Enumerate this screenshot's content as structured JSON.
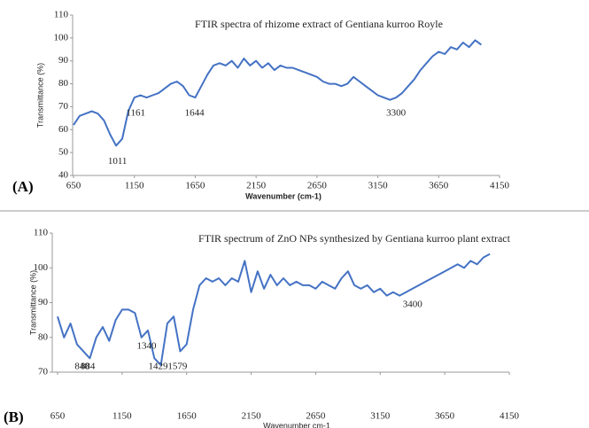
{
  "chart_data": [
    {
      "type": "line",
      "panel_label": "(A)",
      "title": "FTIR spectra of rhizome extract of Gentiana kurroo Royle",
      "xlabel": "Wavenumber (cm-1)",
      "ylabel": "Transmittance (%)",
      "x": [
        650,
        700,
        750,
        800,
        850,
        900,
        950,
        1000,
        1050,
        1100,
        1150,
        1200,
        1250,
        1300,
        1350,
        1400,
        1450,
        1500,
        1550,
        1600,
        1650,
        1700,
        1750,
        1800,
        1850,
        1900,
        1950,
        2000,
        2050,
        2100,
        2150,
        2200,
        2250,
        2300,
        2350,
        2400,
        2450,
        2500,
        2550,
        2600,
        2650,
        2700,
        2750,
        2800,
        2850,
        2900,
        2950,
        3000,
        3050,
        3100,
        3150,
        3200,
        3250,
        3300,
        3350,
        3400,
        3450,
        3500,
        3550,
        3600,
        3650,
        3700,
        3750,
        3800,
        3850,
        3900,
        3950,
        4000
      ],
      "values": [
        62,
        66,
        67,
        68,
        67,
        64,
        58,
        53,
        56,
        68,
        74,
        75,
        74,
        75,
        76,
        78,
        80,
        81,
        79,
        75,
        74,
        79,
        84,
        88,
        89,
        88,
        90,
        87,
        91,
        88,
        90,
        87,
        89,
        86,
        88,
        87,
        87,
        86,
        85,
        84,
        83,
        81,
        80,
        80,
        79,
        80,
        83,
        81,
        79,
        77,
        75,
        74,
        73,
        74,
        76,
        79,
        82,
        86,
        89,
        92,
        94,
        93,
        96,
        95,
        98,
        96,
        99,
        97
      ],
      "color": "#4472c4",
      "xlim": [
        650,
        4150
      ],
      "xticks": [
        650,
        1150,
        1650,
        2150,
        2650,
        3150,
        3650,
        4150
      ],
      "ylim": [
        40,
        110
      ],
      "yticks": [
        40,
        50,
        60,
        70,
        80,
        90,
        100,
        110
      ],
      "peak_labels": [
        1011,
        1161,
        1644,
        3300
      ]
    },
    {
      "type": "line",
      "panel_label": "(B)",
      "title": "FTIR spectrum of ZnO NPs synthesized by Gentiana kurroo plant extract",
      "xlabel": "Wavenumber cm-1",
      "ylabel": "Transmittance (%)",
      "x": [
        650,
        700,
        750,
        800,
        850,
        900,
        950,
        1000,
        1050,
        1100,
        1150,
        1200,
        1250,
        1300,
        1350,
        1400,
        1450,
        1500,
        1550,
        1600,
        1650,
        1700,
        1750,
        1800,
        1850,
        1900,
        1950,
        2000,
        2050,
        2100,
        2150,
        2200,
        2250,
        2300,
        2350,
        2400,
        2450,
        2500,
        2550,
        2600,
        2650,
        2700,
        2750,
        2800,
        2850,
        2900,
        2950,
        3000,
        3050,
        3100,
        3150,
        3200,
        3250,
        3300,
        3350,
        3400,
        3450,
        3500,
        3550,
        3600,
        3650,
        3700,
        3750,
        3800,
        3850,
        3900,
        3950,
        4000
      ],
      "values": [
        86,
        80,
        84,
        78,
        76,
        74,
        80,
        83,
        79,
        85,
        88,
        88,
        87,
        80,
        82,
        74,
        72,
        84,
        86,
        76,
        78,
        88,
        95,
        97,
        96,
        97,
        95,
        97,
        96,
        102,
        93,
        99,
        94,
        98,
        95,
        97,
        95,
        96,
        95,
        95,
        94,
        96,
        95,
        94,
        97,
        99,
        95,
        94,
        95,
        93,
        94,
        92,
        93,
        92,
        93,
        94,
        95,
        96,
        97,
        98,
        99,
        100,
        101,
        100,
        102,
        101,
        103,
        104
      ],
      "color": "#4472c4",
      "xlim": [
        650,
        4150
      ],
      "xticks": [
        650,
        1150,
        1650,
        2150,
        2650,
        3150,
        3650,
        4150
      ],
      "ylim": [
        70,
        110
      ],
      "yticks": [
        70,
        80,
        90,
        100,
        110
      ],
      "peak_labels": [
        840,
        884,
        1340,
        1429,
        1579,
        3400
      ]
    }
  ]
}
